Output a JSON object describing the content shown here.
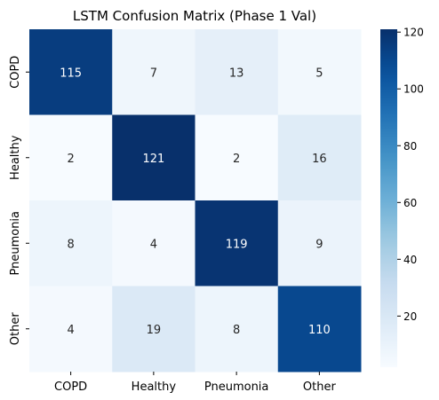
{
  "chart_data": {
    "type": "heatmap",
    "title": "LSTM Confusion Matrix (Phase 1 Val)",
    "xlabel": "",
    "ylabel": "",
    "x_categories": [
      "COPD",
      "Healthy",
      "Pneumonia",
      "Other"
    ],
    "y_categories": [
      "COPD",
      "Healthy",
      "Pneumonia",
      "Other"
    ],
    "values": [
      [
        115,
        7,
        13,
        5
      ],
      [
        2,
        121,
        2,
        16
      ],
      [
        8,
        4,
        119,
        9
      ],
      [
        4,
        19,
        8,
        110
      ]
    ],
    "colormap": "Blues",
    "color_range": [
      2,
      121
    ],
    "colorbar_ticks": [
      20,
      40,
      60,
      80,
      100,
      120
    ],
    "annotations": true
  }
}
